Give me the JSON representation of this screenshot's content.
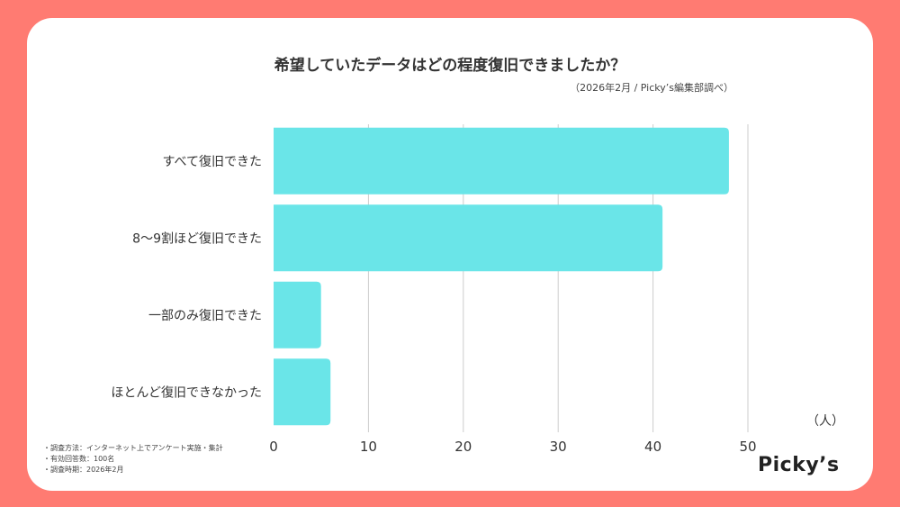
{
  "chart_data": {
    "type": "bar",
    "orientation": "horizontal",
    "title": "希望していたデータはどの程度復旧できましたか？",
    "subtitle": "（2026年2月 / Picky’s編集部調べ）",
    "categories": [
      "すべて復旧できた",
      "8〜9割ほど復旧できた",
      "一部のみ復旧できた",
      "ほとんど復旧できなかった"
    ],
    "values": [
      48,
      41,
      5,
      6
    ],
    "xlabel": "（人）",
    "xlim": [
      0,
      50
    ],
    "xticks": [
      "0",
      "10",
      "20",
      "30",
      "40",
      "50"
    ],
    "grid": true,
    "bar_color": "#6ae5e8",
    "grid_color": "#cccccc"
  },
  "notes": [
    "・調査方法：インターネット上でアンケート実施・集計",
    "・有効回答数：100名",
    "・調査時期：2026年2月"
  ],
  "logo": "Picky’s",
  "colors": {
    "background": "#ff7b72",
    "card": "#ffffff"
  }
}
